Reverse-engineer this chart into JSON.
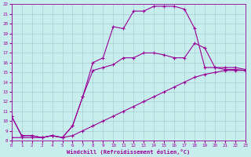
{
  "xlabel": "Windchill (Refroidissement éolien,°C)",
  "bg_color": "#c8eded",
  "line_color": "#990099",
  "grid_color": "#a0c8c8",
  "xlim": [
    0,
    23
  ],
  "ylim": [
    8,
    22
  ],
  "xticks": [
    0,
    1,
    2,
    3,
    4,
    5,
    6,
    7,
    8,
    9,
    10,
    11,
    12,
    13,
    14,
    15,
    16,
    17,
    18,
    19,
    20,
    21,
    22,
    23
  ],
  "yticks": [
    8,
    9,
    10,
    11,
    12,
    13,
    14,
    15,
    16,
    17,
    18,
    19,
    20,
    21,
    22
  ],
  "curve1_x": [
    0,
    1,
    2,
    3,
    4,
    5,
    6,
    7,
    8,
    9,
    10,
    11,
    12,
    13,
    14,
    15,
    16,
    17,
    18,
    19,
    20,
    21,
    22,
    23
  ],
  "curve1_y": [
    10.5,
    8.5,
    8.5,
    8.3,
    8.5,
    8.3,
    9.5,
    12.5,
    16.0,
    16.5,
    19.7,
    19.5,
    21.3,
    21.3,
    21.8,
    21.8,
    21.8,
    21.5,
    19.5,
    15.5,
    15.5,
    15.5,
    15.5,
    15.3
  ],
  "curve2_x": [
    0,
    1,
    2,
    3,
    4,
    5,
    6,
    7,
    8,
    9,
    10,
    11,
    12,
    13,
    14,
    15,
    16,
    17,
    18,
    19,
    20,
    21,
    22,
    23
  ],
  "curve2_y": [
    10.5,
    8.5,
    8.5,
    8.3,
    8.5,
    8.3,
    9.5,
    12.5,
    15.2,
    15.5,
    15.8,
    16.5,
    16.5,
    17.0,
    17.0,
    16.8,
    16.5,
    16.5,
    18.0,
    17.5,
    15.5,
    15.3,
    15.3,
    15.2
  ],
  "curve3_x": [
    0,
    1,
    2,
    3,
    4,
    5,
    6,
    7,
    8,
    9,
    10,
    11,
    12,
    13,
    14,
    15,
    16,
    17,
    18,
    19,
    20,
    21,
    22,
    23
  ],
  "curve3_y": [
    8.3,
    8.3,
    8.3,
    8.3,
    8.5,
    8.3,
    8.5,
    9.0,
    9.5,
    10.0,
    10.5,
    11.0,
    11.5,
    12.0,
    12.5,
    13.0,
    13.5,
    14.0,
    14.5,
    14.8,
    15.0,
    15.2,
    15.2,
    15.2
  ]
}
